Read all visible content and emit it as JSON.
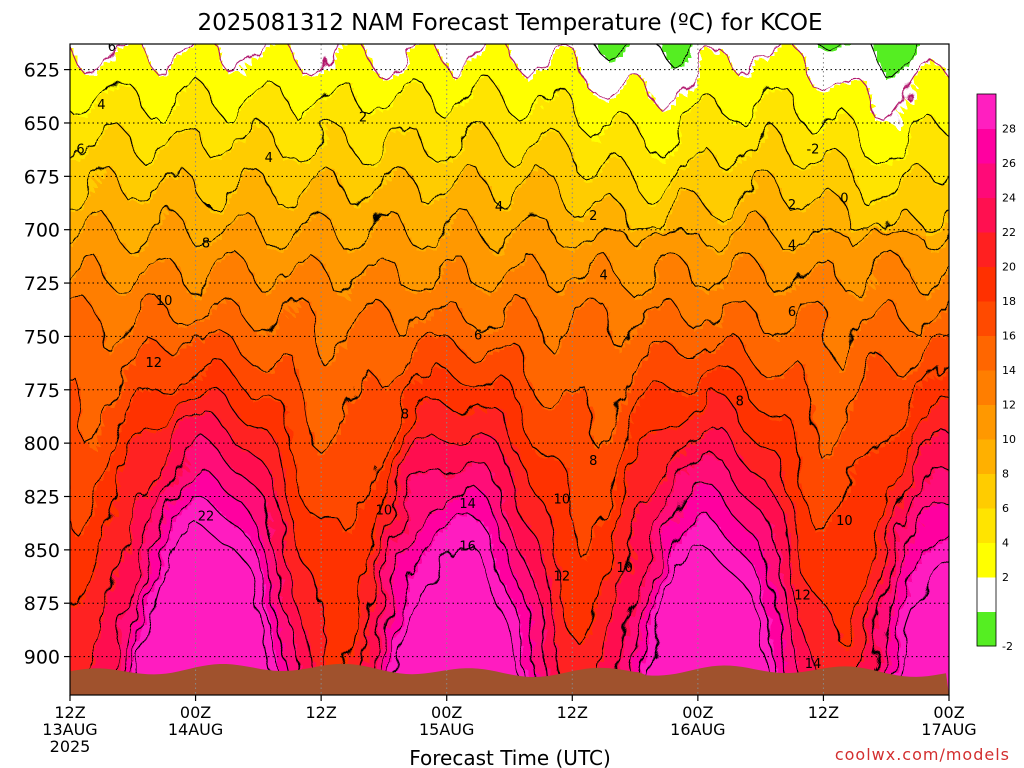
{
  "chart_data": {
    "type": "heatmap",
    "title": "2025081312 NAM Forecast Temperature (ºC) for KCOE",
    "xlabel": "Forecast Time (UTC)",
    "ylabel": "",
    "x_ticks": [
      {
        "value": 0,
        "line1": "12Z",
        "line2": "13AUG",
        "line3": "2025"
      },
      {
        "value": 12,
        "line1": "00Z",
        "line2": "14AUG",
        "line3": ""
      },
      {
        "value": 24,
        "line1": "12Z",
        "line2": "",
        "line3": ""
      },
      {
        "value": 36,
        "line1": "00Z",
        "line2": "15AUG",
        "line3": ""
      },
      {
        "value": 48,
        "line1": "12Z",
        "line2": "",
        "line3": ""
      },
      {
        "value": 60,
        "line1": "00Z",
        "line2": "16AUG",
        "line3": ""
      },
      {
        "value": 72,
        "line1": "12Z",
        "line2": "",
        "line3": ""
      },
      {
        "value": 84,
        "line1": "00Z",
        "line2": "17AUG",
        "line3": ""
      }
    ],
    "y_ticks": [
      625,
      650,
      675,
      700,
      725,
      750,
      775,
      800,
      825,
      850,
      875,
      900
    ],
    "xlim": [
      0,
      84
    ],
    "ylim": [
      918,
      613
    ],
    "colorbar": {
      "levels": [
        -2,
        0,
        2,
        4,
        6,
        8,
        10,
        12,
        14,
        16,
        18,
        20,
        22,
        24,
        26,
        28
      ],
      "labels": [
        "-2",
        "2",
        "4",
        "6",
        "8",
        "10",
        "12",
        "14",
        "16",
        "18",
        "20",
        "22",
        "24",
        "26",
        "28"
      ],
      "colors": [
        "#55ee22",
        "#ffffff",
        "#ffff00",
        "#ffe400",
        "#ffcc00",
        "#ffb000",
        "#ff9800",
        "#ff7e00",
        "#ff6600",
        "#ff4a00",
        "#ff3000",
        "#ff2020",
        "#ff1050",
        "#ff0a78",
        "#ff00a0",
        "#ff1fc0"
      ]
    },
    "contour_labels": [
      {
        "x": 4,
        "p": 614,
        "t": "6"
      },
      {
        "x": 3,
        "p": 641,
        "t": "4"
      },
      {
        "x": 1,
        "p": 662,
        "t": "6"
      },
      {
        "x": 28,
        "p": 647,
        "t": "2"
      },
      {
        "x": 19,
        "p": 666,
        "t": "4"
      },
      {
        "x": 13,
        "p": 706,
        "t": "8"
      },
      {
        "x": 9,
        "p": 733,
        "t": "10"
      },
      {
        "x": 8,
        "p": 762,
        "t": "12"
      },
      {
        "x": 41,
        "p": 689,
        "t": "4"
      },
      {
        "x": 50,
        "p": 693,
        "t": "2"
      },
      {
        "x": 51,
        "p": 721,
        "t": "4"
      },
      {
        "x": 39,
        "p": 749,
        "t": "6"
      },
      {
        "x": 32,
        "p": 786,
        "t": "8"
      },
      {
        "x": 30,
        "p": 831,
        "t": "10"
      },
      {
        "x": 38,
        "p": 828,
        "t": "14"
      },
      {
        "x": 38,
        "p": 848,
        "t": "16"
      },
      {
        "x": 47,
        "p": 826,
        "t": "10"
      },
      {
        "x": 47,
        "p": 862,
        "t": "12"
      },
      {
        "x": 53,
        "p": 858,
        "t": "10"
      },
      {
        "x": 50,
        "p": 808,
        "t": "8"
      },
      {
        "x": 71,
        "p": 662,
        "t": "-2"
      },
      {
        "x": 74,
        "p": 685,
        "t": "0"
      },
      {
        "x": 69,
        "p": 688,
        "t": "2"
      },
      {
        "x": 69,
        "p": 707,
        "t": "4"
      },
      {
        "x": 69,
        "p": 738,
        "t": "6"
      },
      {
        "x": 64,
        "p": 780,
        "t": "8"
      },
      {
        "x": 74,
        "p": 836,
        "t": "10"
      },
      {
        "x": 70,
        "p": 871,
        "t": "12"
      },
      {
        "x": 71,
        "p": 903,
        "t": "14"
      },
      {
        "x": 13,
        "p": 834,
        "t": "22"
      }
    ],
    "credit": "coolwx.com/models"
  }
}
